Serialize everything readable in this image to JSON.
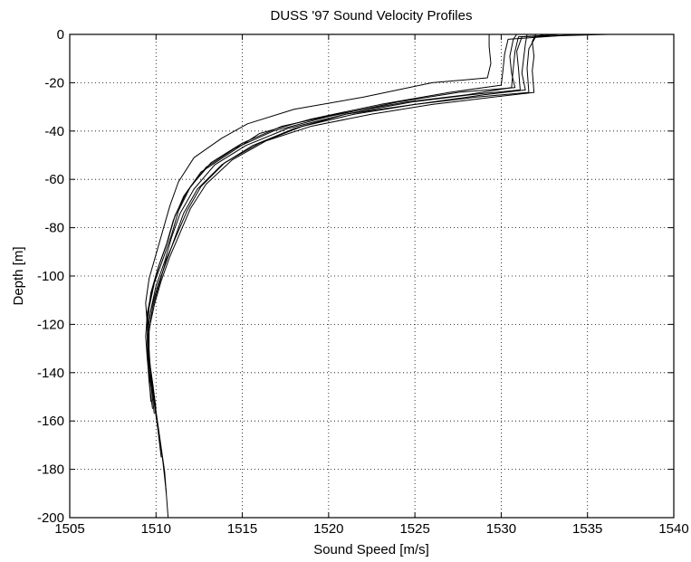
{
  "chart_data": {
    "type": "line",
    "title": "DUSS '97 Sound Velocity Profiles",
    "xlabel": "Sound Speed [m/s]",
    "ylabel": "Depth [m]",
    "xlim": [
      1505,
      1540
    ],
    "ylim": [
      -200,
      0
    ],
    "xticks": [
      1505,
      1510,
      1515,
      1520,
      1525,
      1530,
      1535,
      1540
    ],
    "yticks": [
      0,
      -20,
      -40,
      -60,
      -80,
      -100,
      -120,
      -140,
      -160,
      -180,
      -200
    ],
    "grid": true,
    "grid_style": "dotted",
    "legend": "none",
    "line_color": "#000000",
    "series": [
      {
        "x": [
          1529.3,
          1529.3,
          1529.4,
          1529.2,
          1526.0,
          1522.0,
          1518.0,
          1515.3,
          1513.8,
          1512.2,
          1511.3,
          1510.8,
          1510.4,
          1510.0,
          1509.6,
          1509.4,
          1509.5,
          1509.6,
          1509.7,
          1509.9,
          1510.1,
          1510.3,
          1510.5,
          1510.7
        ],
        "y": [
          0,
          -5,
          -12,
          -18,
          -20,
          -26,
          -31,
          -37,
          -43,
          -51,
          -61,
          -71,
          -81,
          -91,
          -101,
          -111,
          -121,
          -131,
          -141,
          -151,
          -161,
          -171,
          -181,
          -200
        ]
      },
      {
        "x": [
          1534.5,
          1530.4,
          1530.2,
          1530.1,
          1530.0,
          1527.0,
          1523.0,
          1519.0,
          1516.0,
          1514.3,
          1512.6,
          1511.6,
          1511.0,
          1510.6,
          1510.1,
          1509.7,
          1509.5,
          1509.5,
          1509.6,
          1509.8,
          1510.0,
          1510.2,
          1510.4,
          1510.6
        ],
        "y": [
          0,
          -2,
          -8,
          -15,
          -21,
          -24,
          -29,
          -35,
          -41,
          -49,
          -57,
          -67,
          -77,
          -87,
          -97,
          -107,
          -117,
          -127,
          -137,
          -147,
          -157,
          -167,
          -177,
          -190
        ]
      },
      {
        "x": [
          1536.2,
          1531.0,
          1530.8,
          1530.7,
          1530.6,
          1528.0,
          1524.5,
          1520.5,
          1517.3,
          1515.0,
          1513.2,
          1512.0,
          1511.3,
          1510.9,
          1510.4,
          1509.9,
          1509.6,
          1509.5,
          1509.6,
          1509.7,
          1509.9,
          1510.1,
          1510.3
        ],
        "y": [
          0,
          -1,
          -7,
          -14,
          -22,
          -25,
          -28,
          -33,
          -38,
          -45,
          -53,
          -63,
          -73,
          -83,
          -93,
          -103,
          -113,
          -123,
          -133,
          -143,
          -153,
          -163,
          -175
        ]
      },
      {
        "x": [
          1531.5,
          1531.4,
          1531.3,
          1531.2,
          1531.4,
          1529.0,
          1525.0,
          1521.0,
          1518.0,
          1515.6,
          1513.8,
          1512.4,
          1511.6,
          1511.1,
          1510.6,
          1510.1,
          1509.7,
          1509.5,
          1509.5,
          1509.6,
          1509.8
        ],
        "y": [
          0,
          -4,
          -10,
          -16,
          -23,
          -25,
          -29,
          -33,
          -39,
          -46,
          -54,
          -64,
          -74,
          -84,
          -94,
          -104,
          -114,
          -124,
          -134,
          -144,
          -155
        ]
      },
      {
        "x": [
          1532.0,
          1531.8,
          1531.9,
          1531.8,
          1531.9,
          1529.5,
          1526.0,
          1522.5,
          1519.0,
          1516.4,
          1514.4,
          1512.9,
          1512.0,
          1511.4,
          1510.8,
          1510.3,
          1509.9,
          1509.6,
          1509.5,
          1509.6,
          1509.7
        ],
        "y": [
          0,
          -3,
          -9,
          -15,
          -24,
          -26,
          -29,
          -33,
          -38,
          -44,
          -52,
          -62,
          -72,
          -82,
          -92,
          -102,
          -112,
          -122,
          -132,
          -142,
          -152
        ]
      },
      {
        "x": [
          1530.9,
          1530.7,
          1530.5,
          1530.6,
          1530.8,
          1527.5,
          1524.0,
          1520.0,
          1516.8,
          1514.6,
          1512.9,
          1511.8,
          1511.1,
          1510.7,
          1510.2,
          1509.8,
          1509.5,
          1509.4,
          1509.5,
          1509.7,
          1509.9
        ],
        "y": [
          0,
          -2,
          -9,
          -16,
          -22,
          -24,
          -28,
          -34,
          -40,
          -47,
          -55,
          -65,
          -75,
          -85,
          -95,
          -105,
          -115,
          -125,
          -135,
          -145,
          -157
        ]
      },
      {
        "x": [
          1532.5,
          1532.0,
          1531.6,
          1531.5,
          1531.6,
          1528.5,
          1525.0,
          1521.5,
          1518.5,
          1516.0,
          1514.0,
          1512.6,
          1511.8,
          1511.2,
          1510.6,
          1510.2,
          1509.8,
          1509.6,
          1509.6,
          1509.7,
          1509.9
        ],
        "y": [
          0,
          -1,
          -6,
          -14,
          -24,
          -26,
          -29,
          -33,
          -38,
          -45,
          -53,
          -63,
          -73,
          -83,
          -93,
          -103,
          -113,
          -123,
          -133,
          -143,
          -153
        ]
      },
      {
        "x": [
          1533.5,
          1531.2,
          1530.9,
          1531.0,
          1531.1,
          1528.2,
          1524.8,
          1521.0,
          1517.6,
          1515.2,
          1513.4,
          1512.2,
          1511.4,
          1510.9,
          1510.5,
          1510.0,
          1509.7,
          1509.5,
          1509.6,
          1509.8,
          1510.0
        ],
        "y": [
          0,
          -1,
          -7,
          -14,
          -23,
          -25,
          -28,
          -33,
          -39,
          -46,
          -54,
          -64,
          -74,
          -84,
          -94,
          -104,
          -114,
          -124,
          -134,
          -144,
          -155
        ]
      }
    ]
  }
}
